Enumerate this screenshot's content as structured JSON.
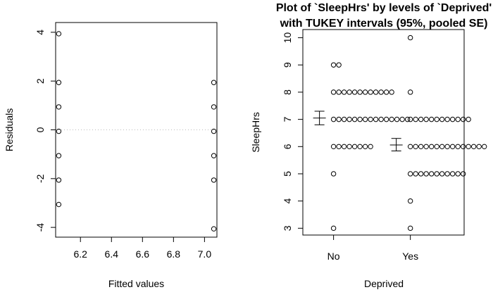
{
  "chart_data": [
    {
      "type": "scatter",
      "title": "",
      "xlabel": "Fitted values",
      "ylabel": "Residuals",
      "xlim": [
        6.04,
        7.08
      ],
      "ylim": [
        -4.4,
        4.4
      ],
      "x_ticks": [
        6.2,
        6.4,
        6.6,
        6.8,
        7.0
      ],
      "x_tick_labels": [
        "6.2",
        "6.4",
        "6.6",
        "6.8",
        "7.0"
      ],
      "y_ticks": [
        -4,
        -2,
        0,
        2,
        4
      ],
      "y_tick_labels": [
        "-4",
        "-2",
        "0",
        "2",
        "4"
      ],
      "reference_line": {
        "y": 0,
        "style": "dotted",
        "color": "#bbbbbb"
      },
      "points": [
        {
          "x": 6.06,
          "y": 3.94
        },
        {
          "x": 6.06,
          "y": 1.94
        },
        {
          "x": 6.06,
          "y": 0.94
        },
        {
          "x": 6.06,
          "y": -0.06
        },
        {
          "x": 6.06,
          "y": -1.06
        },
        {
          "x": 6.06,
          "y": -2.06
        },
        {
          "x": 6.06,
          "y": -3.06
        },
        {
          "x": 7.06,
          "y": 1.94
        },
        {
          "x": 7.06,
          "y": 0.94
        },
        {
          "x": 7.06,
          "y": -0.06
        },
        {
          "x": 7.06,
          "y": -1.06
        },
        {
          "x": 7.06,
          "y": -2.06
        },
        {
          "x": 7.06,
          "y": -4.06
        }
      ]
    },
    {
      "type": "scatter",
      "title": "Plot of `SleepHrs' by levels of `Deprived'",
      "subtitle": "with TUKEY intervals (95%, pooled SE)",
      "xlabel": "Deprived",
      "ylabel": "SleepHrs",
      "categories": [
        "No",
        "Yes"
      ],
      "xlim": [
        0.6,
        2.7
      ],
      "ylim": [
        2.75,
        10.3
      ],
      "y_ticks": [
        3,
        4,
        5,
        6,
        7,
        8,
        9,
        10
      ],
      "y_tick_labels": [
        "3",
        "4",
        "5",
        "6",
        "7",
        "8",
        "9",
        "10"
      ],
      "groups": [
        {
          "category": "No",
          "mean": 7.05,
          "lower": 6.8,
          "upper": 7.3,
          "values": [
            {
              "y": 3,
              "count": 1
            },
            {
              "y": 5,
              "count": 1
            },
            {
              "y": 6,
              "count": 8
            },
            {
              "y": 7,
              "count": 15
            },
            {
              "y": 8,
              "count": 12
            },
            {
              "y": 9,
              "count": 2
            }
          ]
        },
        {
          "category": "Yes",
          "mean": 6.06,
          "lower": 5.84,
          "upper": 6.3,
          "values": [
            {
              "y": 3,
              "count": 1
            },
            {
              "y": 4,
              "count": 1
            },
            {
              "y": 5,
              "count": 11
            },
            {
              "y": 6,
              "count": 15
            },
            {
              "y": 7,
              "count": 12
            },
            {
              "y": 8,
              "count": 1
            },
            {
              "y": 10,
              "count": 1
            }
          ]
        }
      ]
    }
  ]
}
